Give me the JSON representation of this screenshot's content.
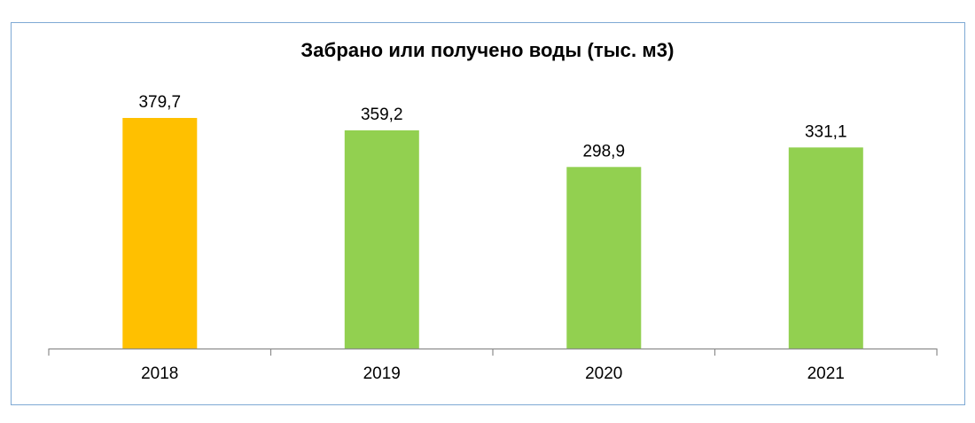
{
  "chart_data": {
    "type": "bar",
    "title": "Забрано или получено воды (тыс. м3)",
    "xlabel": "",
    "ylabel": "",
    "categories": [
      "2018",
      "2019",
      "2020",
      "2021"
    ],
    "values": [
      379.7,
      359.2,
      298.9,
      331.1
    ],
    "value_labels": [
      "379,7",
      "359,2",
      "298,9",
      "331,1"
    ],
    "ylim": [
      0,
      400
    ],
    "grid": false,
    "legend": "none",
    "colors": [
      "#ffc000",
      "#92d050",
      "#92d050",
      "#92d050"
    ]
  }
}
